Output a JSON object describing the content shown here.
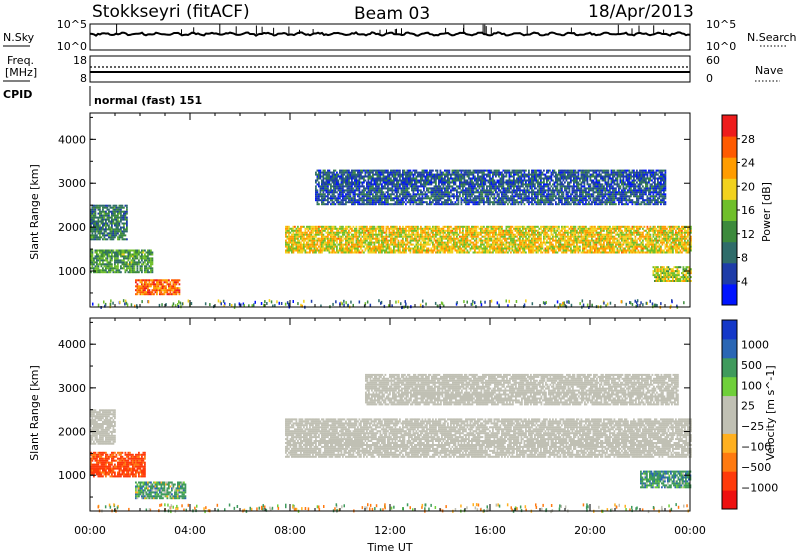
{
  "header": {
    "station": "Stokkseyri (fitACF)",
    "beam": "Beam 03",
    "date": "18/Apr/2013"
  },
  "top_panels": {
    "nsky_label": "N.Sky",
    "nsky_ticks": [
      "10^5",
      "10^0"
    ],
    "nsearch_label": "N.Search",
    "nsearch_ticks": [
      "10^5",
      "10^0"
    ],
    "freq_label": "Freq.",
    "freq_unit": "[MHz]",
    "freq_ticks": [
      "18",
      "8"
    ],
    "nave_label": "Nave",
    "nave_ticks": [
      "60",
      "0"
    ],
    "cpid_label": "CPID",
    "cpid_value": "normal (fast) 151"
  },
  "colors": {
    "power": [
      "#0014ff",
      "#1e3ca8",
      "#2f6c6a",
      "#3c8a3c",
      "#6fbf2a",
      "#f2d21e",
      "#ff9c00",
      "#ff5a00",
      "#ee1c1c"
    ],
    "velocity": [
      "#1438c8",
      "#2a66b4",
      "#3f9a5c",
      "#6fcf3a",
      "#c0c0b4",
      "#c0c0b4",
      "#ffb020",
      "#ff7a10",
      "#ff3a0a",
      "#ee1010"
    ]
  },
  "chart_data": [
    {
      "type": "heatmap",
      "title": "",
      "xlabel": "Time UT",
      "ylabel": "Slant Range [km]",
      "xticks": [
        "00:00",
        "04:00",
        "08:00",
        "12:00",
        "16:00",
        "20:00",
        "00:00"
      ],
      "xlim_hours": [
        0,
        24
      ],
      "yticks": [
        1000,
        2000,
        3000,
        4000
      ],
      "ylim": [
        180,
        4600
      ],
      "colorbar": {
        "label": "Power [dB]",
        "ticks": [
          4,
          8,
          12,
          16,
          20,
          24,
          28
        ],
        "range": [
          0,
          32
        ]
      },
      "regions": [
        {
          "name": "early-band",
          "t": [
            0.0,
            1.5
          ],
          "range": [
            1700,
            2500
          ],
          "value": 10
        },
        {
          "name": "early-low-band",
          "t": [
            0.0,
            2.5
          ],
          "range": [
            950,
            1450
          ],
          "value": 13
        },
        {
          "name": "near-patch",
          "t": [
            1.8,
            3.6
          ],
          "range": [
            450,
            800
          ],
          "value": 26
        },
        {
          "name": "main-band",
          "t": [
            7.8,
            24.0
          ],
          "range": [
            1400,
            2000
          ],
          "value": 20
        },
        {
          "name": "upper-band",
          "t": [
            9.0,
            23.0
          ],
          "range": [
            2500,
            3300
          ],
          "value": 7
        },
        {
          "name": "late-low-band",
          "t": [
            22.5,
            24.0
          ],
          "range": [
            750,
            1100
          ],
          "value": 18
        }
      ]
    },
    {
      "type": "heatmap",
      "title": "",
      "xlabel": "Time UT",
      "ylabel": "Slant Range [km]",
      "xticks": [
        "00:00",
        "04:00",
        "08:00",
        "12:00",
        "16:00",
        "20:00",
        "00:00"
      ],
      "xlim_hours": [
        0,
        24
      ],
      "yticks": [
        1000,
        2000,
        3000,
        4000
      ],
      "ylim": [
        180,
        4600
      ],
      "colorbar": {
        "label": "Velocity [m s^-1]",
        "tick_labels": [
          "1000",
          "500",
          "100",
          "25",
          "−25",
          "−100",
          "−500",
          "−1000"
        ]
      },
      "regions": [
        {
          "name": "early-band",
          "t": [
            0.0,
            1.0
          ],
          "range": [
            1700,
            2500
          ],
          "value": 0
        },
        {
          "name": "early-low-band",
          "t": [
            0.0,
            2.2
          ],
          "range": [
            950,
            1500
          ],
          "value": -400
        },
        {
          "name": "near-patch",
          "t": [
            1.8,
            3.8
          ],
          "range": [
            450,
            850
          ],
          "value": 150
        },
        {
          "name": "main-band",
          "t": [
            7.8,
            24.0
          ],
          "range": [
            1400,
            2300
          ],
          "value": 0
        },
        {
          "name": "upper-band",
          "t": [
            11.0,
            23.5
          ],
          "range": [
            2600,
            3300
          ],
          "value": 0
        },
        {
          "name": "late-low-band",
          "t": [
            22.0,
            24.0
          ],
          "range": [
            700,
            1100
          ],
          "value": 200
        }
      ]
    }
  ]
}
